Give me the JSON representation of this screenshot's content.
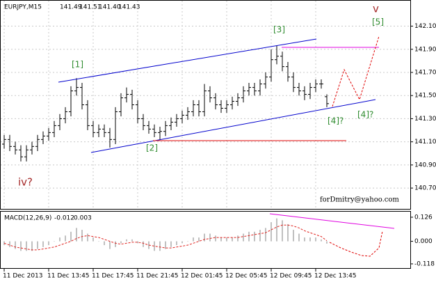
{
  "chart_data": [
    {
      "type": "ohlc",
      "title": "EURJPY,M15",
      "header_labels": [
        "141.49",
        "141.51",
        "141.40",
        "141.43"
      ],
      "open": [
        141.08,
        141.12,
        141.06,
        141.03,
        140.97,
        141.03,
        141.06,
        141.12,
        141.15,
        141.18,
        141.24,
        141.3,
        141.36,
        141.54,
        141.57,
        141.42,
        141.24,
        141.18,
        141.21,
        141.18,
        141.12,
        141.36,
        141.48,
        141.51,
        141.42,
        141.3,
        141.24,
        141.21,
        141.18,
        141.19,
        141.24,
        141.27,
        141.3,
        141.33,
        141.36,
        141.42,
        141.36,
        141.54,
        141.48,
        141.42,
        141.39,
        141.42,
        141.45,
        141.48,
        141.54,
        141.57,
        141.54,
        141.6,
        141.66,
        141.81,
        141.84,
        141.75,
        141.66,
        141.57,
        141.54,
        141.51,
        141.57,
        141.6,
        141.49
      ],
      "high": [
        141.16,
        141.16,
        141.1,
        141.07,
        141.07,
        141.1,
        141.16,
        141.19,
        141.22,
        141.28,
        141.34,
        141.4,
        141.58,
        141.65,
        141.61,
        141.46,
        141.28,
        141.25,
        141.25,
        141.22,
        141.4,
        141.52,
        141.57,
        141.55,
        141.46,
        141.34,
        141.28,
        141.25,
        141.23,
        141.28,
        141.31,
        141.34,
        141.37,
        141.4,
        141.46,
        141.46,
        141.6,
        141.58,
        141.52,
        141.46,
        141.46,
        141.49,
        141.52,
        141.58,
        141.61,
        141.61,
        141.64,
        141.7,
        141.9,
        141.93,
        141.88,
        141.79,
        141.7,
        141.61,
        141.58,
        141.61,
        141.64,
        141.64,
        141.51
      ],
      "low": [
        141.04,
        141.02,
        140.99,
        140.93,
        140.93,
        140.99,
        141.02,
        141.08,
        141.11,
        141.14,
        141.2,
        141.26,
        141.32,
        141.5,
        141.38,
        141.2,
        141.14,
        141.14,
        141.14,
        141.05,
        141.08,
        141.32,
        141.44,
        141.38,
        141.26,
        141.2,
        141.17,
        141.14,
        141.12,
        141.15,
        141.2,
        141.23,
        141.26,
        141.29,
        141.32,
        141.32,
        141.32,
        141.44,
        141.38,
        141.35,
        141.35,
        141.38,
        141.41,
        141.44,
        141.5,
        141.5,
        141.5,
        141.56,
        141.62,
        141.77,
        141.71,
        141.62,
        141.53,
        141.5,
        141.46,
        141.47,
        141.53,
        141.56,
        141.4
      ],
      "close": [
        141.12,
        141.06,
        141.03,
        140.97,
        141.03,
        141.06,
        141.12,
        141.15,
        141.18,
        141.24,
        141.3,
        141.36,
        141.54,
        141.57,
        141.42,
        141.24,
        141.18,
        141.21,
        141.18,
        141.12,
        141.36,
        141.48,
        141.51,
        141.42,
        141.3,
        141.24,
        141.21,
        141.18,
        141.19,
        141.24,
        141.27,
        141.3,
        141.33,
        141.36,
        141.42,
        141.36,
        141.54,
        141.48,
        141.42,
        141.39,
        141.42,
        141.45,
        141.48,
        141.54,
        141.57,
        141.54,
        141.6,
        141.66,
        141.81,
        141.84,
        141.75,
        141.66,
        141.57,
        141.54,
        141.51,
        141.57,
        141.6,
        141.6,
        141.43
      ],
      "color": "#000000",
      "ylim": [
        140.52,
        142.32
      ],
      "yticks": [
        {
          "value": 142.1,
          "label": "142.10"
        },
        {
          "value": 141.9,
          "label": "141.90"
        },
        {
          "value": 141.7,
          "label": "141.70"
        },
        {
          "value": 141.5,
          "label": "141.50"
        },
        {
          "value": 141.3,
          "label": "141.30"
        },
        {
          "value": 141.1,
          "label": "141.10"
        },
        {
          "value": 140.9,
          "label": "140.90"
        },
        {
          "value": 140.7,
          "label": "140.70"
        }
      ],
      "xticks": [
        {
          "value": 0,
          "label": "11 Dec 2013"
        },
        {
          "value": 8,
          "label": "11 Dec 13:45"
        },
        {
          "value": 16,
          "label": "11 Dec 17:45"
        },
        {
          "value": 24,
          "label": "11 Dec 21:45"
        },
        {
          "value": 32,
          "label": "12 Dec 01:45"
        },
        {
          "value": 40,
          "label": "12 Dec 05:45"
        },
        {
          "value": 48,
          "label": "12 Dec 09:45"
        },
        {
          "value": 56,
          "label": "12 Dec 13:45"
        }
      ],
      "grid": true,
      "annotations": [
        "[1]",
        "[2]",
        "[3]",
        "[4]?",
        "[4]?",
        "[5]",
        "v",
        "iv?",
        "forDmitry@yahoo.com"
      ]
    },
    {
      "type": "macd",
      "title": "MACD(12,26,9)",
      "series": [
        {
          "name": "MACD",
          "color": "#c0c0c0",
          "values": [
            -0.02,
            -0.03,
            -0.04,
            -0.05,
            -0.05,
            -0.05,
            -0.04,
            -0.03,
            -0.02,
            0.0,
            0.02,
            0.03,
            0.05,
            0.07,
            0.06,
            0.04,
            0.02,
            0.0,
            -0.02,
            -0.04,
            -0.03,
            -0.01,
            0.01,
            0.01,
            -0.01,
            -0.03,
            -0.04,
            -0.05,
            -0.05,
            -0.04,
            -0.03,
            -0.02,
            -0.01,
            0.0,
            0.02,
            0.02,
            0.04,
            0.04,
            0.03,
            0.02,
            0.02,
            0.02,
            0.03,
            0.04,
            0.05,
            0.05,
            0.06,
            0.07,
            0.1,
            0.12,
            0.11,
            0.09,
            0.06,
            0.04,
            0.02,
            0.02,
            0.02,
            0.01,
            -0.012
          ]
        },
        {
          "name": "Signal",
          "color": "#e0201c",
          "values": [
            -0.01,
            -0.02,
            -0.03,
            -0.035,
            -0.04,
            -0.045,
            -0.045,
            -0.04,
            -0.035,
            -0.03,
            -0.02,
            -0.01,
            0.0,
            0.015,
            0.025,
            0.03,
            0.025,
            0.02,
            0.01,
            0.0,
            -0.01,
            -0.015,
            -0.01,
            -0.005,
            -0.005,
            -0.01,
            -0.02,
            -0.025,
            -0.03,
            -0.035,
            -0.035,
            -0.03,
            -0.025,
            -0.02,
            -0.01,
            0.0,
            0.01,
            0.015,
            0.02,
            0.02,
            0.02,
            0.02,
            0.02,
            0.025,
            0.03,
            0.035,
            0.04,
            0.045,
            0.06,
            0.075,
            0.085,
            0.085,
            0.08,
            0.07,
            0.055,
            0.045,
            0.035,
            0.025,
            0.003
          ]
        }
      ],
      "ylim": [
        -0.14,
        0.155
      ],
      "yticks": [
        {
          "value": 0.126,
          "label": "0.126"
        },
        {
          "value": 0.0,
          "label": "0.000"
        },
        {
          "value": -0.118,
          "label": "-0.118"
        }
      ]
    }
  ]
}
